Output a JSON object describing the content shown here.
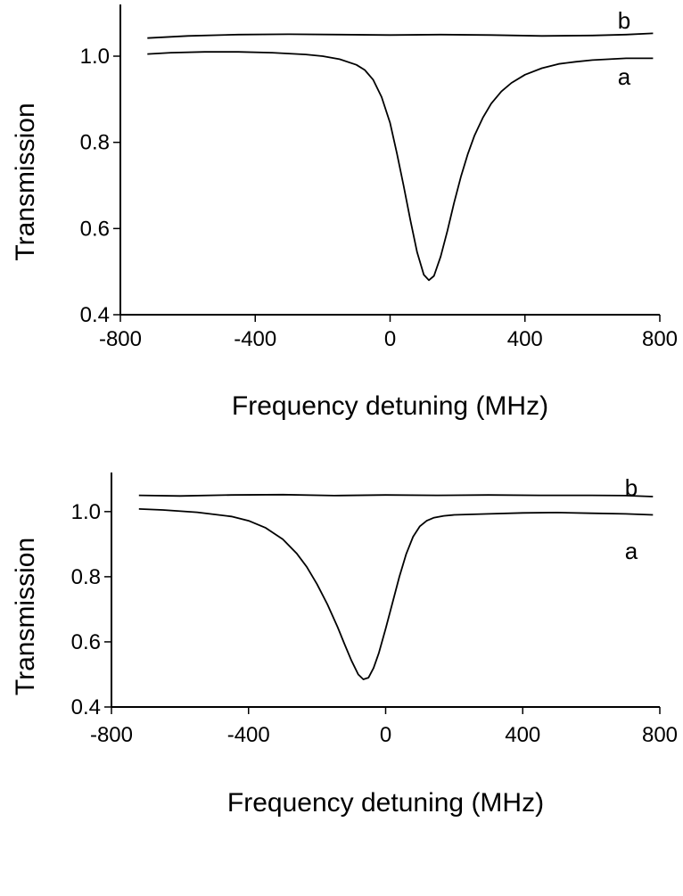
{
  "chart_data": [
    {
      "type": "line",
      "title": "",
      "xlabel": "Frequency detuning (MHz)",
      "ylabel": "Transmission",
      "xlim": [
        -800,
        800
      ],
      "ylim": [
        0.4,
        1.12
      ],
      "xticks": [
        -800,
        -400,
        0,
        400,
        800
      ],
      "xtick_labels": [
        "-800",
        "-400",
        "0",
        "400",
        "800"
      ],
      "yticks": [
        0.4,
        0.6,
        0.8,
        1.0
      ],
      "ytick_labels": [
        "0.4",
        "0.6",
        "0.8",
        "1.0"
      ],
      "grid": false,
      "series": [
        {
          "name": "a",
          "x": [
            -720,
            -650,
            -550,
            -450,
            -350,
            -250,
            -200,
            -150,
            -100,
            -75,
            -50,
            -25,
            0,
            20,
            40,
            60,
            80,
            100,
            115,
            130,
            150,
            170,
            190,
            210,
            230,
            250,
            275,
            300,
            330,
            360,
            400,
            450,
            500,
            550,
            600,
            650,
            700,
            780
          ],
          "y": [
            1.005,
            1.008,
            1.01,
            1.01,
            1.008,
            1.004,
            1.0,
            0.993,
            0.98,
            0.968,
            0.945,
            0.905,
            0.845,
            0.775,
            0.7,
            0.62,
            0.545,
            0.493,
            0.48,
            0.49,
            0.535,
            0.595,
            0.66,
            0.72,
            0.772,
            0.815,
            0.857,
            0.89,
            0.918,
            0.938,
            0.957,
            0.972,
            0.982,
            0.987,
            0.991,
            0.993,
            0.995,
            0.995
          ]
        },
        {
          "name": "b",
          "x": [
            -720,
            -600,
            -450,
            -300,
            -150,
            0,
            150,
            300,
            450,
            600,
            700,
            780
          ],
          "y": [
            1.042,
            1.047,
            1.05,
            1.051,
            1.05,
            1.049,
            1.05,
            1.049,
            1.047,
            1.048,
            1.05,
            1.053
          ]
        }
      ],
      "annotations": [
        "b",
        "a"
      ]
    },
    {
      "type": "line",
      "title": "",
      "xlabel": "Frequency detuning (MHz)",
      "ylabel": "Transmission",
      "xlim": [
        -800,
        800
      ],
      "ylim": [
        0.4,
        1.12
      ],
      "xticks": [
        -800,
        -400,
        0,
        400,
        800
      ],
      "xtick_labels": [
        "-800",
        "-400",
        "0",
        "400",
        "800"
      ],
      "yticks": [
        0.4,
        0.6,
        0.8,
        1.0
      ],
      "ytick_labels": [
        "0.4",
        "0.6",
        "0.8",
        "1.0"
      ],
      "grid": false,
      "series": [
        {
          "name": "a",
          "x": [
            -720,
            -650,
            -550,
            -450,
            -400,
            -350,
            -300,
            -260,
            -230,
            -200,
            -170,
            -140,
            -120,
            -100,
            -80,
            -65,
            -50,
            -35,
            -20,
            0,
            20,
            40,
            60,
            80,
            100,
            120,
            140,
            170,
            200,
            300,
            400,
            500,
            600,
            700,
            780
          ],
          "y": [
            1.008,
            1.005,
            0.998,
            0.985,
            0.972,
            0.95,
            0.915,
            0.872,
            0.83,
            0.777,
            0.715,
            0.645,
            0.593,
            0.543,
            0.5,
            0.485,
            0.49,
            0.52,
            0.565,
            0.64,
            0.72,
            0.8,
            0.87,
            0.923,
            0.955,
            0.972,
            0.981,
            0.987,
            0.99,
            0.993,
            0.996,
            0.997,
            0.995,
            0.993,
            0.99
          ]
        },
        {
          "name": "b",
          "x": [
            -720,
            -600,
            -450,
            -300,
            -150,
            0,
            150,
            300,
            450,
            600,
            700,
            780
          ],
          "y": [
            1.05,
            1.048,
            1.051,
            1.052,
            1.049,
            1.051,
            1.05,
            1.051,
            1.05,
            1.05,
            1.049,
            1.046
          ]
        }
      ],
      "annotations": [
        "b",
        "a"
      ]
    }
  ]
}
